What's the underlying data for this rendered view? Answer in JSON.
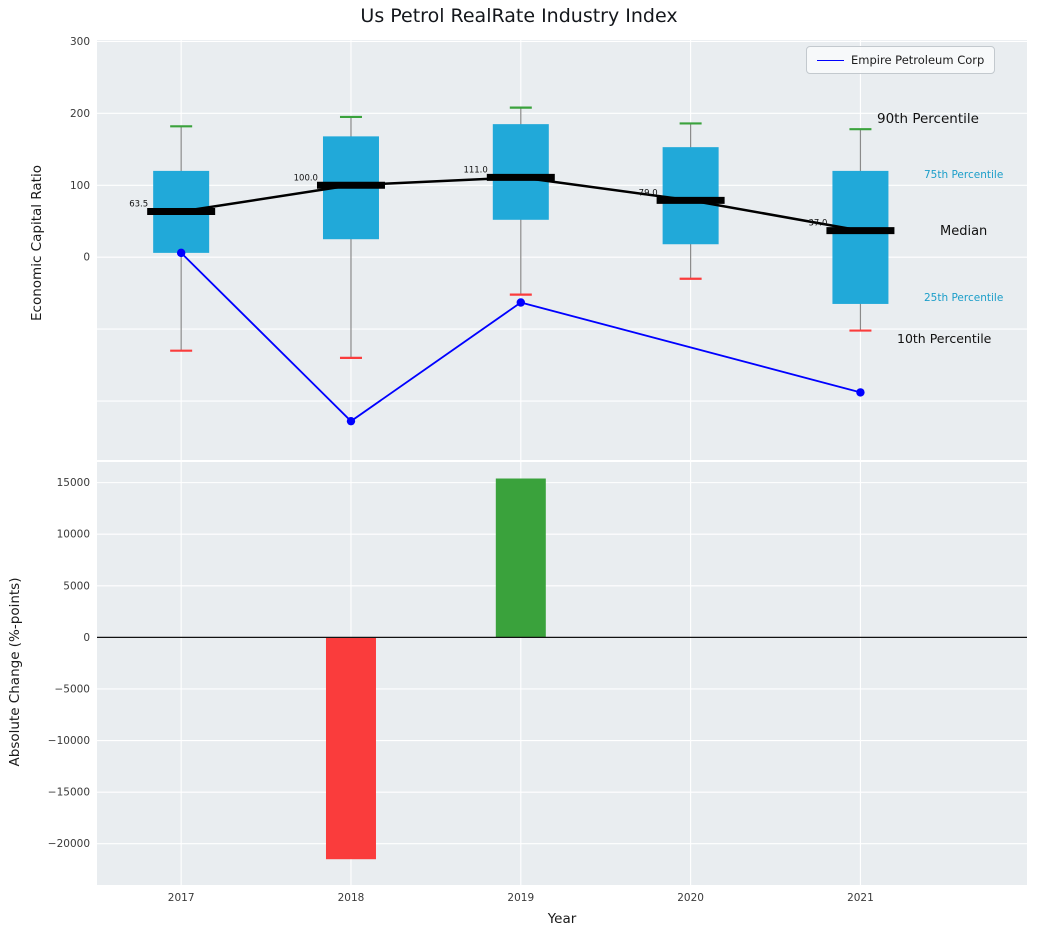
{
  "colors": {
    "axes_bg": "#e9edf0",
    "grid": "#ffffff",
    "box": "#21a9d9",
    "p90_cap": "#3aa23c",
    "p10_cap": "#fa3c3c",
    "company": "#0000ff",
    "bar_pos": "#3aa23c",
    "bar_neg": "#fa3c3c",
    "median": "#000000"
  },
  "chart_data": [
    {
      "type": "box",
      "title": "Us Petrol RealRate Industry Index",
      "ylabel": "Economic Capital Ratio",
      "ylim": [
        -282,
        302
      ],
      "yticks": [
        0,
        100,
        200,
        300
      ],
      "ytick_labels": [
        "0",
        "100",
        "200",
        "300"
      ],
      "grid_y": [
        -200,
        -100,
        0,
        100,
        200,
        300
      ],
      "categories": [
        "2017",
        "2018",
        "2019",
        "2020",
        "2021"
      ],
      "boxes": [
        {
          "year": "2017",
          "p10": -130,
          "p25": 6,
          "median": 63.5,
          "p75": 120,
          "p90": 182,
          "median_label": "63.5"
        },
        {
          "year": "2018",
          "p10": -140,
          "p25": 25,
          "median": 100.0,
          "p75": 168,
          "p90": 195,
          "median_label": "100.0"
        },
        {
          "year": "2019",
          "p10": -52,
          "p25": 52,
          "median": 111.0,
          "p75": 185,
          "p90": 208,
          "median_label": "111.0"
        },
        {
          "year": "2020",
          "p10": -30,
          "p25": 18,
          "median": 79.0,
          "p75": 153,
          "p90": 186,
          "median_label": "79.0"
        },
        {
          "year": "2021",
          "p10": -102,
          "p25": -65,
          "median": 37.0,
          "p75": 120,
          "p90": 178,
          "median_label": "37.0"
        }
      ],
      "company": {
        "name": "Empire Petroleum Corp",
        "values": [
          6,
          -228,
          -63,
          null,
          -188
        ]
      },
      "annotations": {
        "p90": "90th Percentile",
        "p75": "75th Percentile",
        "median": "Median",
        "p25": "25th Percentile",
        "p10": "10th Percentile"
      },
      "legend_position": "upper right"
    },
    {
      "type": "bar",
      "ylabel": "Absolute Change (%-points)",
      "xlabel": "Year",
      "ylim": [
        -24000,
        17000
      ],
      "yticks": [
        15000,
        10000,
        5000,
        0,
        -5000,
        -10000,
        -15000,
        -20000
      ],
      "ytick_labels": [
        "15000",
        "10000",
        "5000",
        "0",
        "−5000",
        "−10000",
        "−15000",
        "−20000"
      ],
      "categories": [
        "2017",
        "2018",
        "2019",
        "2020",
        "2021"
      ],
      "values": [
        0,
        -21500,
        15400,
        0,
        0
      ]
    }
  ]
}
